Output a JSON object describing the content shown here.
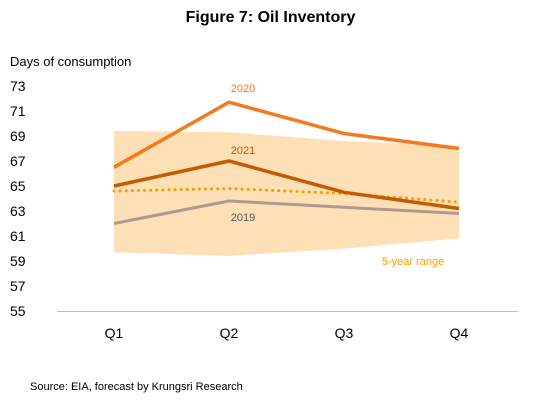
{
  "chart_data": {
    "type": "line",
    "title": "Figure 7: Oil Inventory",
    "ylabel": "Days of consumption",
    "source": "Source: EIA, forecast by Krungsri Research",
    "categories": [
      "Q1",
      "Q2",
      "Q3",
      "Q4"
    ],
    "ylim": [
      55,
      73
    ],
    "yticks": [
      55,
      57,
      59,
      61,
      63,
      65,
      67,
      69,
      71,
      73
    ],
    "grid": false,
    "band": {
      "name": "5-year range",
      "color": "#fde0b5",
      "label_color": "#f5a000",
      "low": [
        59.7,
        59.4,
        60.0,
        60.8
      ],
      "high": [
        69.4,
        69.3,
        68.6,
        68.2
      ]
    },
    "series": [
      {
        "name": "2020",
        "color": "#f57a1f",
        "style": "solid",
        "values": [
          66.5,
          71.7,
          69.2,
          68.0
        ]
      },
      {
        "name": "2021",
        "color": "#c55a00",
        "style": "solid",
        "values": [
          65.0,
          67.0,
          64.5,
          63.2
        ]
      },
      {
        "name": "",
        "color": "#f5a000",
        "style": "dotted",
        "values": [
          64.6,
          64.8,
          64.4,
          63.7
        ]
      },
      {
        "name": "2019",
        "color": "#b09a90",
        "style": "solid",
        "values": [
          62.0,
          63.8,
          63.3,
          62.8
        ]
      }
    ]
  }
}
